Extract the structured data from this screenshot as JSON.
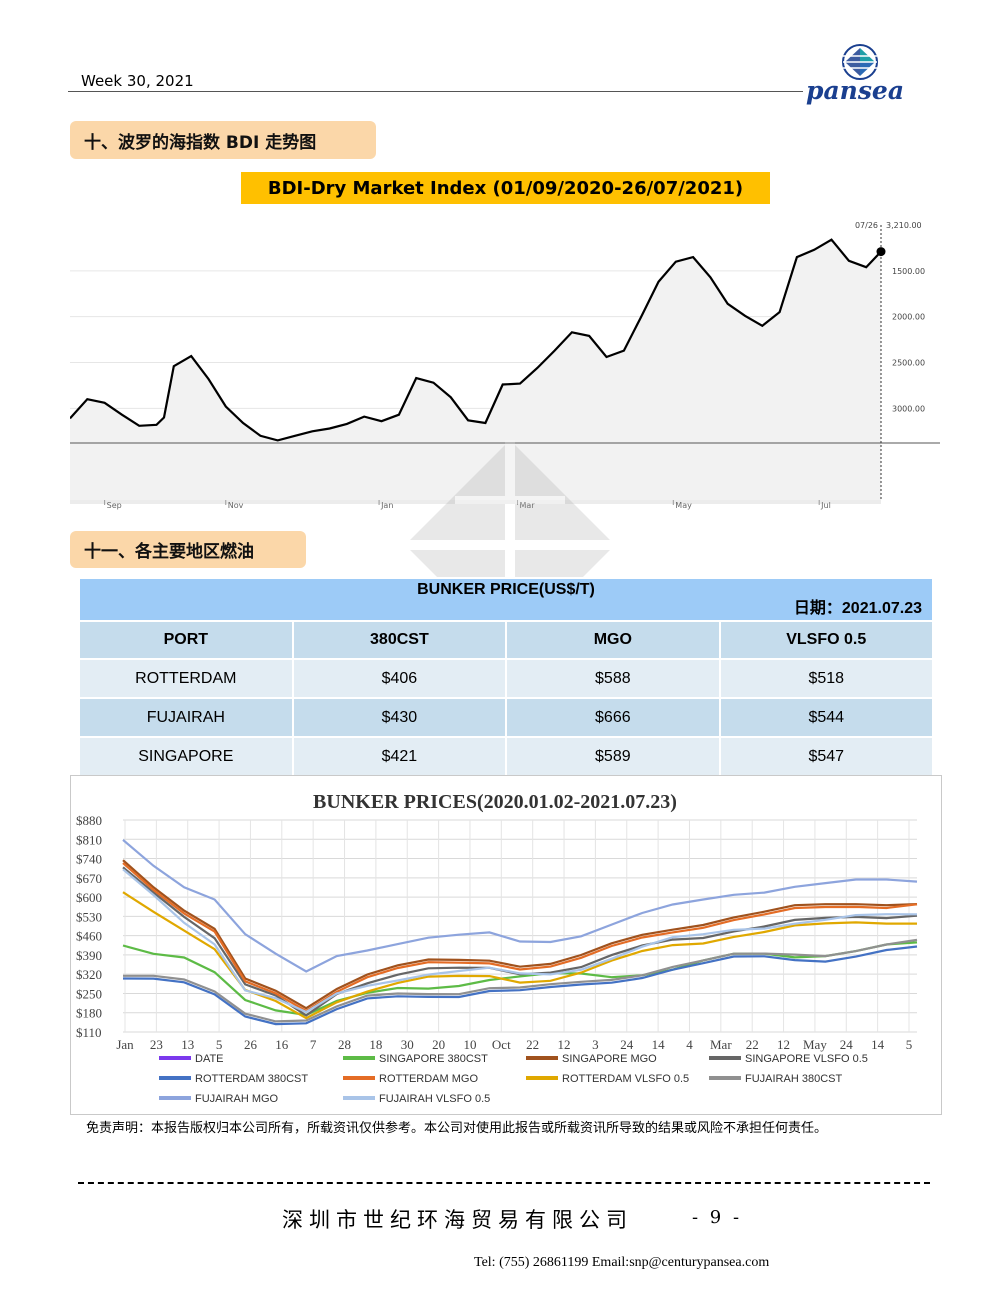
{
  "header": {
    "week": "Week 30, 2021",
    "logo_text": "pansea"
  },
  "section1": {
    "title": "十、波罗的海指数 BDI 走势图"
  },
  "bdi": {
    "title": "BDI-Dry Market Index (01/09/2020-26/07/2021)",
    "current_label": "07/26",
    "current_value": "3,210.00",
    "y_ticks": [
      "3000.00",
      "2500.00",
      "2000.00",
      "1500.00"
    ],
    "x_ticks": [
      "Sep",
      "Nov",
      "Jan",
      "Mar",
      "May",
      "Jul"
    ]
  },
  "section2": {
    "title": "十一、各主要地区燃油"
  },
  "bunker_table": {
    "title": "BUNKER PRICE(US$/T)",
    "date_label": "日期：2021.07.23",
    "headers": [
      "PORT",
      "380CST",
      "MGO",
      "VLSFO 0.5"
    ],
    "rows": [
      [
        "ROTTERDAM",
        "$406",
        "$588",
        "$518"
      ],
      [
        "FUJAIRAH",
        "$430",
        "$666",
        "$544"
      ],
      [
        "SINGAPORE",
        "$421",
        "$589",
        "$547"
      ]
    ]
  },
  "chart_data": [
    {
      "type": "line",
      "title": "BDI-Dry Market Index (01/09/2020-26/07/2021)",
      "x": [
        "2020-09-01",
        "2020-09-08",
        "2020-09-15",
        "2020-09-22",
        "2020-09-29",
        "2020-10-06",
        "2020-10-09",
        "2020-10-13",
        "2020-10-20",
        "2020-10-27",
        "2020-11-03",
        "2020-11-10",
        "2020-11-17",
        "2020-11-24",
        "2020-12-01",
        "2020-12-08",
        "2020-12-15",
        "2020-12-22",
        "2020-12-29",
        "2021-01-05",
        "2021-01-12",
        "2021-01-19",
        "2021-01-26",
        "2021-02-02",
        "2021-02-09",
        "2021-02-16",
        "2021-02-23",
        "2021-03-02",
        "2021-03-09",
        "2021-03-16",
        "2021-03-23",
        "2021-03-30",
        "2021-04-06",
        "2021-04-13",
        "2021-04-20",
        "2021-04-27",
        "2021-05-04",
        "2021-05-11",
        "2021-05-18",
        "2021-05-25",
        "2021-06-01",
        "2021-06-08",
        "2021-06-15",
        "2021-06-22",
        "2021-06-29",
        "2021-07-06",
        "2021-07-13",
        "2021-07-20",
        "2021-07-26"
      ],
      "values": [
        1390,
        1600,
        1560,
        1430,
        1310,
        1320,
        1400,
        1960,
        2070,
        1820,
        1520,
        1340,
        1200,
        1150,
        1200,
        1250,
        1280,
        1330,
        1410,
        1360,
        1430,
        1830,
        1780,
        1620,
        1370,
        1340,
        1760,
        1770,
        1940,
        2130,
        2330,
        2290,
        2060,
        2130,
        2500,
        2880,
        3100,
        3150,
        2930,
        2640,
        2510,
        2400,
        2550,
        3150,
        3230,
        3340,
        3110,
        3040,
        3210
      ],
      "ylim": [
        500,
        3500
      ],
      "y_ticks": [
        1500,
        2000,
        2500,
        3000
      ],
      "x_tick_labels": [
        "Sep",
        "Nov",
        "Jan",
        "Mar",
        "May",
        "Jul"
      ],
      "grid": true
    },
    {
      "type": "line",
      "title": "BUNKER PRICES(2020.01.02-2021.07.23)",
      "ylim": [
        110,
        880
      ],
      "y_ticks": [
        "$880",
        "$810",
        "$740",
        "$670",
        "$600",
        "$530",
        "$460",
        "$390",
        "$320",
        "$250",
        "$180",
        "$110"
      ],
      "x_tick_labels": [
        "Jan",
        "23",
        "13",
        "5",
        "26",
        "16",
        "7",
        "28",
        "18",
        "30",
        "20",
        "10",
        "Oct",
        "22",
        "12",
        "3",
        "24",
        "14",
        "4",
        "Mar",
        "22",
        "12",
        "May",
        "24",
        "14",
        "5"
      ],
      "legend_position": "bottom",
      "grid": true,
      "x_index": [
        0,
        3,
        6,
        9,
        12,
        15,
        18,
        21,
        24,
        27,
        30,
        33,
        36,
        39,
        42,
        45,
        48,
        51,
        54,
        57,
        60,
        63,
        66,
        69,
        72,
        75,
        78
      ],
      "series": [
        {
          "name": "DATE",
          "color": "#7b39ed",
          "values": []
        },
        {
          "name": "SINGAPORE 380CST",
          "color": "#5dbb46",
          "values": [
            420,
            380,
            370,
            330,
            240,
            200,
            170,
            210,
            240,
            270,
            280,
            290,
            300,
            300,
            310,
            320,
            320,
            330,
            340,
            360,
            380,
            390,
            390,
            400,
            410,
            420,
            421
          ]
        },
        {
          "name": "SINGAPORE MGO",
          "color": "#a0521d",
          "values": [
            740,
            650,
            560,
            480,
            290,
            250,
            200,
            280,
            330,
            350,
            360,
            360,
            370,
            360,
            370,
            390,
            420,
            450,
            480,
            510,
            540,
            550,
            560,
            560,
            570,
            580,
            589
          ]
        },
        {
          "name": "SINGAPORE VLSFO 0.5",
          "color": "#666666",
          "values": [
            710,
            630,
            540,
            450,
            270,
            230,
            170,
            260,
            300,
            320,
            330,
            330,
            340,
            330,
            340,
            350,
            380,
            410,
            440,
            460,
            490,
            500,
            510,
            510,
            520,
            530,
            547
          ]
        },
        {
          "name": "ROTTERDAM 380CST",
          "color": "#4472c4",
          "values": [
            300,
            290,
            280,
            250,
            180,
            150,
            140,
            180,
            220,
            240,
            250,
            250,
            260,
            250,
            260,
            280,
            300,
            320,
            340,
            350,
            370,
            380,
            380,
            380,
            390,
            400,
            406
          ]
        },
        {
          "name": "ROTTERDAM MGO",
          "color": "#e46c25",
          "values": [
            730,
            640,
            550,
            470,
            280,
            240,
            190,
            270,
            320,
            340,
            350,
            350,
            360,
            350,
            360,
            380,
            410,
            440,
            470,
            500,
            530,
            540,
            550,
            550,
            560,
            570,
            588
          ]
        },
        {
          "name": "ROTTERDAM VLSFO 0.5",
          "color": "#e0a800",
          "values": [
            620,
            560,
            490,
            410,
            250,
            210,
            160,
            230,
            270,
            290,
            300,
            300,
            310,
            300,
            310,
            330,
            360,
            390,
            420,
            440,
            470,
            480,
            490,
            490,
            500,
            510,
            518
          ]
        },
        {
          "name": "FUJAIRAH  380CST",
          "color": "#909090",
          "values": [
            310,
            300,
            290,
            260,
            190,
            160,
            150,
            190,
            230,
            250,
            260,
            260,
            270,
            260,
            270,
            290,
            310,
            330,
            350,
            360,
            380,
            390,
            400,
            400,
            410,
            420,
            430
          ]
        },
        {
          "name": "FUJAIRAH MGO",
          "color": "#8da4dd",
          "values": [
            800,
            720,
            650,
            600,
            460,
            380,
            320,
            390,
            420,
            440,
            450,
            450,
            460,
            440,
            450,
            470,
            500,
            530,
            560,
            590,
            620,
            630,
            640,
            640,
            650,
            660,
            666
          ]
        },
        {
          "name": "FUJAIRAH VLSFO 0.5",
          "color": "#a9c4e8",
          "values": [
            690,
            610,
            520,
            440,
            260,
            220,
            170,
            250,
            290,
            310,
            320,
            320,
            330,
            320,
            330,
            350,
            380,
            410,
            440,
            460,
            490,
            500,
            510,
            510,
            520,
            530,
            544
          ]
        }
      ]
    }
  ],
  "footer": {
    "disclaimer": "免责声明：本报告版权归本公司所有，所载资讯仅供参考。本公司对使用此报告或所载资讯所导致的结果或风险不承担任何责任。",
    "company": "深圳市世纪环海贸易有限公司",
    "page": "- 9 -",
    "contact": "Tel: (755) 26861199   Email:snp@centurypansea.com"
  }
}
